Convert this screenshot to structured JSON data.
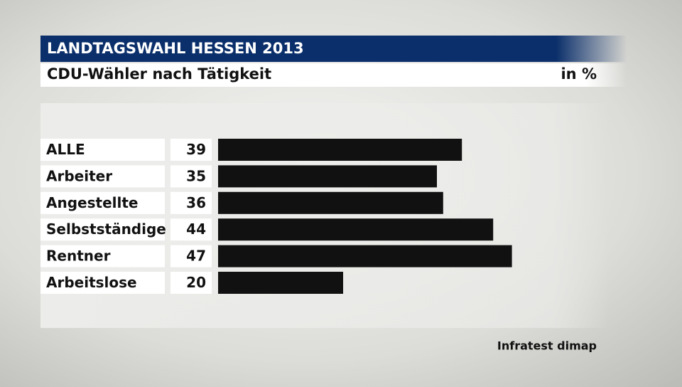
{
  "chart_data": {
    "type": "bar",
    "title": "LANDTAGSWAHL HESSEN 2013",
    "subtitle": "CDU-Wähler nach Tätigkeit",
    "unit_label": "in %",
    "source": "Infratest dimap",
    "categories": [
      "ALLE",
      "Arbeiter",
      "Angestellte",
      "Selbstständige",
      "Rentner",
      "Arbeitslose"
    ],
    "values": [
      39,
      35,
      36,
      44,
      47,
      20
    ],
    "color": "#111111"
  }
}
